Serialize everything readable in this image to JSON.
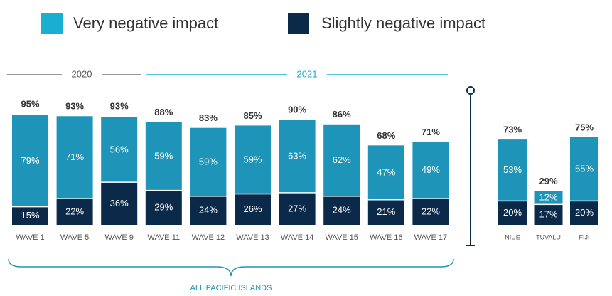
{
  "chart_data": [
    {
      "type": "bar",
      "stacked": true,
      "categories": [
        "WAVE 1",
        "WAVE 5",
        "WAVE 9",
        "WAVE 11",
        "WAVE 12",
        "WAVE 13",
        "WAVE 14",
        "WAVE 15",
        "WAVE 16",
        "WAVE 17"
      ],
      "series": [
        {
          "name": "Slightly negative impact",
          "color": "#0b2a4a",
          "values": [
            15,
            22,
            36,
            29,
            24,
            26,
            27,
            24,
            21,
            22
          ],
          "value_labels": [
            "15%",
            "22%",
            "36%",
            "29%",
            "24%",
            "26%",
            "27%",
            "24%",
            "21%",
            "22%"
          ]
        },
        {
          "name": "Very negative impact",
          "color": "#1e95b8",
          "values": [
            79,
            71,
            56,
            59,
            59,
            59,
            63,
            62,
            47,
            49
          ],
          "value_labels": [
            "79%",
            "71%",
            "56%",
            "59%",
            "59%",
            "59%",
            "63%",
            "62%",
            "47%",
            "49%"
          ]
        }
      ],
      "totals": [
        95,
        93,
        93,
        88,
        83,
        85,
        90,
        86,
        68,
        71
      ],
      "total_labels": [
        "95%",
        "93%",
        "93%",
        "88%",
        "83%",
        "85%",
        "90%",
        "86%",
        "68%",
        "71%"
      ],
      "periods": [
        "2020",
        "2021"
      ],
      "group_label": "ALL PACIFIC ISLANDS"
    },
    {
      "type": "bar",
      "stacked": true,
      "categories": [
        "NIUE",
        "TUVALU",
        "FIJI"
      ],
      "series": [
        {
          "name": "Slightly negative impact",
          "color": "#0b2a4a",
          "values": [
            20,
            17,
            20
          ],
          "value_labels": [
            "20%",
            "17%",
            "20%"
          ]
        },
        {
          "name": "Very negative impact",
          "color": "#1e95b8",
          "values": [
            53,
            12,
            55
          ],
          "value_labels": [
            "53%",
            "12%",
            "55%"
          ]
        }
      ],
      "totals": [
        73,
        29,
        75
      ],
      "total_labels": [
        "73%",
        "29%",
        "75%"
      ]
    }
  ]
}
